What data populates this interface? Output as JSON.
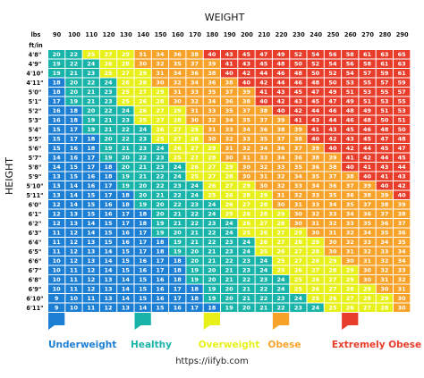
{
  "chart_data": {
    "type": "heatmap",
    "title": "WEIGHT",
    "ylabel": "HEIGHT",
    "xlabel_unit": "lbs",
    "ylabel_unit": "ft/in",
    "weights_lbs": [
      90,
      100,
      110,
      120,
      130,
      140,
      150,
      160,
      170,
      180,
      190,
      200,
      210,
      220,
      230,
      240,
      250,
      260,
      270,
      280,
      290
    ],
    "heights": [
      "4'8\"",
      "4'9\"",
      "4'10\"",
      "4'11\"",
      "5'0\"",
      "5'1\"",
      "5'2\"",
      "5'3\"",
      "5'4\"",
      "5'5\"",
      "5'6\"",
      "5'7\"",
      "5'8\"",
      "5'9\"",
      "5'10\"",
      "5'11\"",
      "6'0\"",
      "6'1\"",
      "6'2\"",
      "6'3\"",
      "6'4\"",
      "6'5\"",
      "6'6\"",
      "6'7\"",
      "6'8\"",
      "6'9\"",
      "6'10\"",
      "6'11\""
    ],
    "bmi_values": [
      [
        20,
        22,
        25,
        27,
        29,
        31,
        34,
        36,
        38,
        40,
        43,
        45,
        47,
        49,
        52,
        54,
        56,
        58,
        61,
        63,
        65
      ],
      [
        19,
        22,
        24,
        26,
        28,
        30,
        32,
        35,
        37,
        39,
        41,
        43,
        45,
        48,
        50,
        52,
        54,
        56,
        58,
        61,
        63
      ],
      [
        19,
        21,
        23,
        25,
        27,
        29,
        31,
        34,
        36,
        38,
        40,
        42,
        44,
        46,
        48,
        50,
        52,
        54,
        57,
        59,
        61
      ],
      [
        18,
        20,
        22,
        24,
        26,
        28,
        30,
        32,
        34,
        36,
        38,
        40,
        42,
        44,
        46,
        48,
        50,
        53,
        55,
        57,
        59
      ],
      [
        18,
        20,
        21,
        23,
        25,
        27,
        29,
        31,
        33,
        35,
        37,
        39,
        41,
        43,
        45,
        47,
        49,
        51,
        53,
        55,
        57
      ],
      [
        17,
        19,
        21,
        23,
        25,
        26,
        28,
        30,
        32,
        34,
        36,
        38,
        40,
        42,
        43,
        45,
        47,
        49,
        51,
        53,
        55
      ],
      [
        16,
        18,
        20,
        22,
        24,
        26,
        27,
        29,
        31,
        33,
        35,
        37,
        38,
        40,
        42,
        44,
        46,
        48,
        49,
        51,
        53
      ],
      [
        16,
        18,
        19,
        21,
        23,
        25,
        27,
        28,
        30,
        32,
        34,
        35,
        37,
        39,
        41,
        43,
        44,
        46,
        48,
        50,
        51
      ],
      [
        15,
        17,
        19,
        21,
        22,
        24,
        26,
        27,
        29,
        31,
        33,
        34,
        36,
        38,
        39,
        41,
        43,
        45,
        46,
        48,
        50
      ],
      [
        15,
        17,
        18,
        20,
        22,
        23,
        25,
        27,
        28,
        30,
        32,
        33,
        35,
        37,
        38,
        40,
        42,
        43,
        45,
        47,
        48
      ],
      [
        15,
        16,
        18,
        19,
        21,
        23,
        24,
        26,
        27,
        29,
        31,
        32,
        34,
        36,
        37,
        39,
        40,
        42,
        44,
        45,
        47
      ],
      [
        14,
        16,
        17,
        19,
        20,
        22,
        23,
        25,
        27,
        28,
        30,
        31,
        33,
        34,
        36,
        38,
        39,
        41,
        42,
        44,
        45
      ],
      [
        14,
        15,
        17,
        18,
        20,
        21,
        23,
        24,
        26,
        27,
        29,
        30,
        32,
        33,
        35,
        36,
        38,
        40,
        41,
        43,
        44
      ],
      [
        13,
        15,
        16,
        18,
        19,
        21,
        22,
        24,
        25,
        27,
        28,
        30,
        31,
        32,
        34,
        35,
        37,
        38,
        40,
        41,
        43
      ],
      [
        13,
        14,
        16,
        17,
        19,
        20,
        22,
        23,
        24,
        26,
        27,
        29,
        30,
        32,
        33,
        34,
        36,
        37,
        39,
        40,
        42
      ],
      [
        13,
        14,
        15,
        17,
        18,
        20,
        21,
        22,
        24,
        25,
        26,
        28,
        29,
        31,
        32,
        33,
        35,
        36,
        38,
        39,
        40
      ],
      [
        12,
        14,
        15,
        16,
        18,
        19,
        20,
        22,
        23,
        24,
        26,
        27,
        28,
        30,
        31,
        33,
        34,
        35,
        37,
        38,
        39
      ],
      [
        12,
        13,
        15,
        16,
        17,
        18,
        20,
        21,
        22,
        24,
        25,
        26,
        28,
        29,
        30,
        32,
        33,
        34,
        36,
        37,
        38
      ],
      [
        12,
        13,
        14,
        15,
        17,
        18,
        19,
        21,
        22,
        23,
        24,
        26,
        27,
        28,
        30,
        31,
        32,
        33,
        35,
        36,
        37
      ],
      [
        11,
        12,
        14,
        15,
        16,
        17,
        19,
        20,
        21,
        22,
        24,
        25,
        26,
        27,
        29,
        30,
        31,
        32,
        34,
        35,
        36
      ],
      [
        11,
        12,
        13,
        15,
        16,
        17,
        18,
        19,
        21,
        22,
        23,
        24,
        26,
        27,
        28,
        29,
        30,
        32,
        33,
        34,
        35
      ],
      [
        11,
        12,
        13,
        14,
        15,
        17,
        18,
        19,
        20,
        21,
        23,
        24,
        25,
        26,
        27,
        28,
        30,
        31,
        32,
        33,
        34
      ],
      [
        10,
        12,
        13,
        14,
        15,
        16,
        17,
        18,
        20,
        21,
        22,
        23,
        24,
        25,
        27,
        28,
        29,
        30,
        31,
        32,
        34
      ],
      [
        10,
        11,
        12,
        14,
        15,
        16,
        17,
        18,
        19,
        20,
        21,
        23,
        24,
        25,
        26,
        27,
        28,
        29,
        30,
        32,
        33
      ],
      [
        10,
        11,
        12,
        13,
        14,
        15,
        16,
        18,
        19,
        20,
        21,
        22,
        23,
        24,
        25,
        26,
        27,
        29,
        30,
        31,
        32
      ],
      [
        10,
        11,
        12,
        13,
        14,
        15,
        16,
        17,
        18,
        19,
        20,
        21,
        22,
        24,
        25,
        26,
        27,
        28,
        29,
        30,
        31
      ],
      [
        9,
        10,
        11,
        13,
        14,
        15,
        16,
        17,
        18,
        19,
        20,
        21,
        22,
        23,
        24,
        25,
        26,
        27,
        28,
        29,
        30
      ],
      [
        9,
        10,
        11,
        12,
        13,
        14,
        15,
        16,
        17,
        18,
        19,
        20,
        21,
        22,
        23,
        24,
        25,
        26,
        27,
        28,
        30
      ]
    ],
    "categories": [
      {
        "label": "Underweight",
        "color": "#1d7fd4",
        "max_bmi": 18
      },
      {
        "label": "Healthy",
        "color": "#18b4a9",
        "max_bmi": 24
      },
      {
        "label": "Overweight",
        "color": "#e8f019",
        "max_bmi": 29
      },
      {
        "label": "Obese",
        "color": "#f7a229",
        "max_bmi": 39
      },
      {
        "label": "Extremely Obese",
        "color": "#e93d2c",
        "max_bmi": 100
      }
    ]
  },
  "footer": {
    "url": "https://iifyb.com"
  }
}
